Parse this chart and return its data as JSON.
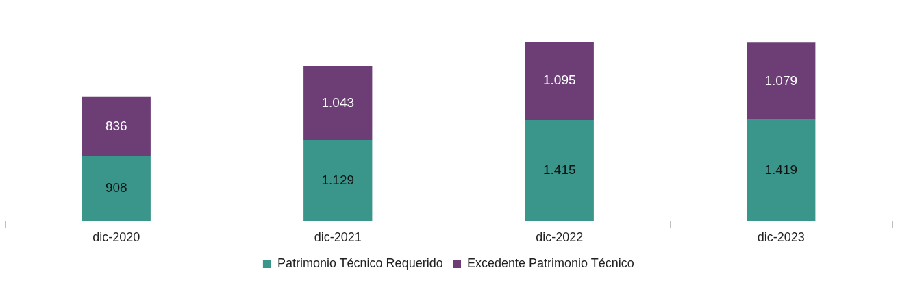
{
  "chart_data": {
    "type": "bar",
    "stacked": true,
    "legend": "bottom",
    "grid": false,
    "tick_labels": "x",
    "categories": [
      "dic-2020",
      "dic-2021",
      "dic-2022",
      "dic-2023"
    ],
    "series": [
      {
        "name": "Patrimonio Técnico Requerido",
        "color": "#3a968b",
        "values": [
          908,
          1129,
          1415,
          1419
        ],
        "value_labels": [
          "908",
          "1.129",
          "1.415",
          "1.419"
        ]
      },
      {
        "name": "Excedente Patrimonio Técnico",
        "color": "#6c3e75",
        "values": [
          836,
          1043,
          1095,
          1079
        ],
        "value_labels": [
          "836",
          "1.043",
          "1.095",
          "1.079"
        ]
      }
    ]
  }
}
